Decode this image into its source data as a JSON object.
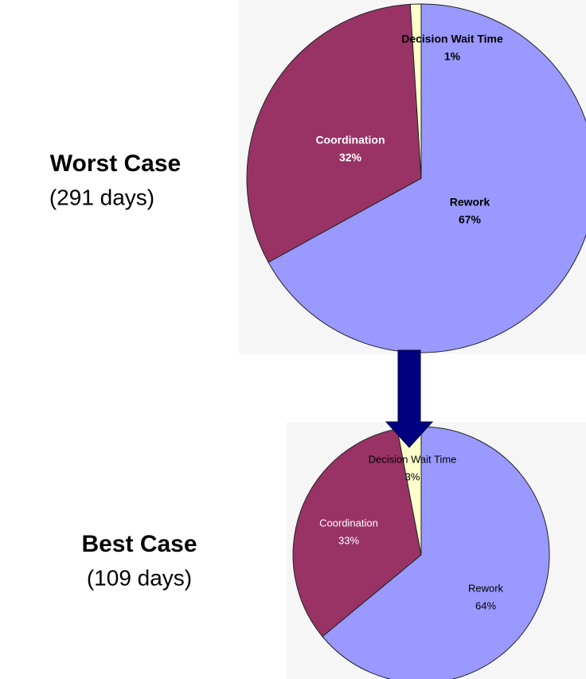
{
  "chart_data": [
    {
      "type": "pie",
      "title": "Worst Case",
      "subtitle": "(291 days)",
      "categories": [
        "Rework",
        "Coordination",
        "Decision Wait Time"
      ],
      "values": [
        67,
        32,
        1
      ],
      "value_labels": [
        "67%",
        "32%",
        "1%"
      ],
      "colors": [
        "#9999ff",
        "#993366",
        "#ffffcc"
      ]
    },
    {
      "type": "pie",
      "title": "Best Case",
      "subtitle": "(109 days)",
      "categories": [
        "Rework",
        "Coordination",
        "Decision Wait Time"
      ],
      "values": [
        64,
        33,
        3
      ],
      "value_labels": [
        "64%",
        "33%",
        "3%"
      ],
      "colors": [
        "#9999ff",
        "#993366",
        "#ffffcc"
      ]
    }
  ]
}
